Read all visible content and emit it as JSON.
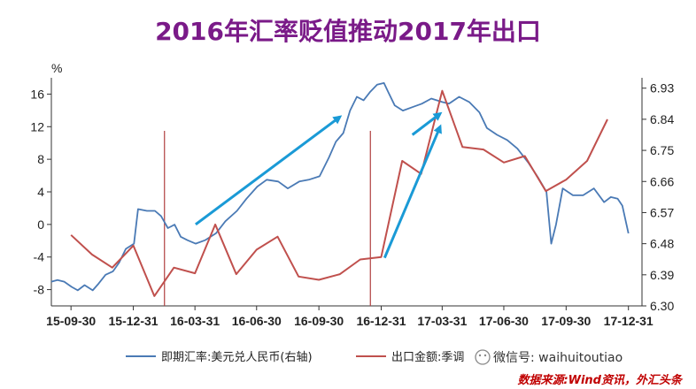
{
  "chart_data": {
    "type": "line",
    "title": "2016年汇率贬值推动2017年出口",
    "left_axis_unit": "%",
    "left_ylim": [
      -10,
      18
    ],
    "left_ticks": [
      "16",
      "12",
      "8",
      "4",
      "0",
      "-4",
      "-8"
    ],
    "left_tick_values": [
      16,
      12,
      8,
      4,
      0,
      -4,
      -8
    ],
    "right_ylim": [
      6.3,
      6.96
    ],
    "right_ticks": [
      "6.93",
      "6.84",
      "6.75",
      "6.66",
      "6.57",
      "6.48",
      "6.39",
      "6.30"
    ],
    "right_tick_values": [
      6.93,
      6.84,
      6.75,
      6.66,
      6.57,
      6.48,
      6.39,
      6.3
    ],
    "x_ticks": [
      "15-09-30",
      "15-12-31",
      "16-03-31",
      "16-06-30",
      "16-09-30",
      "16-12-31",
      "17-03-31",
      "17-06-30",
      "17-09-30",
      "17-12-31"
    ],
    "x_tick_values": [
      "2015-09-30",
      "2015-12-31",
      "2016-03-31",
      "2016-06-30",
      "2016-09-30",
      "2016-12-31",
      "2017-03-31",
      "2017-06-30",
      "2017-09-30",
      "2017-12-31"
    ],
    "x_range": [
      "2015-09-01",
      "2018-01-20"
    ],
    "grid": false,
    "legend_position": "bottom",
    "series": [
      {
        "name": "即期汇率:美元兑人民币(右轴)",
        "axis": "right",
        "color": "#4a7ab5",
        "points": [
          [
            "2015-09-01",
            6.37
          ],
          [
            "2015-09-10",
            6.375
          ],
          [
            "2015-09-20",
            6.37
          ],
          [
            "2015-10-01",
            6.355
          ],
          [
            "2015-10-10",
            6.345
          ],
          [
            "2015-10-20",
            6.36
          ],
          [
            "2015-11-01",
            6.345
          ],
          [
            "2015-11-10",
            6.365
          ],
          [
            "2015-11-20",
            6.39
          ],
          [
            "2015-12-01",
            6.4
          ],
          [
            "2015-12-10",
            6.425
          ],
          [
            "2015-12-20",
            6.465
          ],
          [
            "2016-01-01",
            6.48
          ],
          [
            "2016-01-07",
            6.58
          ],
          [
            "2016-01-20",
            6.575
          ],
          [
            "2016-02-01",
            6.575
          ],
          [
            "2016-02-10",
            6.56
          ],
          [
            "2016-02-20",
            6.525
          ],
          [
            "2016-03-01",
            6.535
          ],
          [
            "2016-03-10",
            6.5
          ],
          [
            "2016-03-20",
            6.49
          ],
          [
            "2016-04-01",
            6.48
          ],
          [
            "2016-04-15",
            6.49
          ],
          [
            "2016-05-01",
            6.51
          ],
          [
            "2016-05-15",
            6.545
          ],
          [
            "2016-06-01",
            6.575
          ],
          [
            "2016-06-15",
            6.61
          ],
          [
            "2016-07-01",
            6.645
          ],
          [
            "2016-07-15",
            6.665
          ],
          [
            "2016-08-01",
            6.66
          ],
          [
            "2016-08-15",
            6.64
          ],
          [
            "2016-09-01",
            6.66
          ],
          [
            "2016-09-15",
            6.665
          ],
          [
            "2016-10-01",
            6.675
          ],
          [
            "2016-10-15",
            6.73
          ],
          [
            "2016-10-25",
            6.775
          ],
          [
            "2016-11-05",
            6.8
          ],
          [
            "2016-11-15",
            6.865
          ],
          [
            "2016-11-25",
            6.905
          ],
          [
            "2016-12-05",
            6.895
          ],
          [
            "2016-12-15",
            6.92
          ],
          [
            "2016-12-25",
            6.94
          ],
          [
            "2017-01-04",
            6.945
          ],
          [
            "2017-01-10",
            6.92
          ],
          [
            "2017-01-20",
            6.88
          ],
          [
            "2017-02-01",
            6.865
          ],
          [
            "2017-02-15",
            6.875
          ],
          [
            "2017-03-01",
            6.885
          ],
          [
            "2017-03-15",
            6.9
          ],
          [
            "2017-03-31",
            6.89
          ],
          [
            "2017-04-10",
            6.885
          ],
          [
            "2017-04-25",
            6.905
          ],
          [
            "2017-05-10",
            6.89
          ],
          [
            "2017-05-25",
            6.86
          ],
          [
            "2017-06-05",
            6.815
          ],
          [
            "2017-06-20",
            6.795
          ],
          [
            "2017-07-05",
            6.78
          ],
          [
            "2017-07-20",
            6.755
          ],
          [
            "2017-08-05",
            6.715
          ],
          [
            "2017-08-20",
            6.67
          ],
          [
            "2017-09-01",
            6.63
          ],
          [
            "2017-09-08",
            6.48
          ],
          [
            "2017-09-15",
            6.535
          ],
          [
            "2017-09-25",
            6.64
          ],
          [
            "2017-10-10",
            6.62
          ],
          [
            "2017-10-25",
            6.62
          ],
          [
            "2017-11-10",
            6.64
          ],
          [
            "2017-11-25",
            6.6
          ],
          [
            "2017-12-05",
            6.615
          ],
          [
            "2017-12-15",
            6.61
          ],
          [
            "2017-12-22",
            6.59
          ],
          [
            "2017-12-31",
            6.51
          ]
        ]
      },
      {
        "name": "出口金额:季调",
        "axis": "left",
        "color": "#c0504d",
        "points": [
          [
            "2015-09-30",
            -1.3
          ],
          [
            "2015-10-31",
            -3.7
          ],
          [
            "2015-11-30",
            -5.3
          ],
          [
            "2015-12-31",
            -2.6
          ],
          [
            "2016-01-31",
            -8.8
          ],
          [
            "2016-02-29",
            -5.3
          ],
          [
            "2016-03-31",
            -6.0
          ],
          [
            "2016-04-30",
            0.0
          ],
          [
            "2016-05-31",
            -6.1
          ],
          [
            "2016-06-30",
            -3.1
          ],
          [
            "2016-07-31",
            -1.5
          ],
          [
            "2016-08-31",
            -6.4
          ],
          [
            "2016-09-30",
            -6.8
          ],
          [
            "2016-10-31",
            -6.1
          ],
          [
            "2016-11-30",
            -4.3
          ],
          [
            "2016-12-31",
            -4.0
          ],
          [
            "2017-01-31",
            7.8
          ],
          [
            "2017-02-28",
            6.2
          ],
          [
            "2017-03-31",
            16.4
          ],
          [
            "2017-04-30",
            9.5
          ],
          [
            "2017-05-31",
            9.2
          ],
          [
            "2017-06-30",
            7.6
          ],
          [
            "2017-07-31",
            8.4
          ],
          [
            "2017-08-31",
            4.1
          ],
          [
            "2017-09-30",
            5.5
          ],
          [
            "2017-10-31",
            7.8
          ],
          [
            "2017-11-30",
            12.9
          ]
        ]
      }
    ],
    "annotations": {
      "vertical_lines": [
        "2016-02-15",
        "2016-12-15"
      ],
      "arrows": [
        {
          "from": [
            "2016-04-01",
            0.0
          ],
          "to": [
            "2016-10-31",
            13.2
          ]
        },
        {
          "from": [
            "2017-01-05",
            -4.1
          ],
          "to": [
            "2017-03-28",
            12.0
          ]
        },
        {
          "from": [
            "2017-02-15",
            11.0
          ],
          "to": [
            "2017-03-28",
            13.6
          ]
        }
      ]
    },
    "legend": [
      "即期汇率:美元兑人民币(右轴)",
      "出口金额:季调"
    ]
  },
  "watermark": "微信号: waihuitoutiao",
  "source": "数据来源:Wind资讯，外汇头条",
  "colors": {
    "title": "#7a1a88",
    "source": "#c00000",
    "arrow": "#1a9ad6",
    "vline": "#b04040"
  }
}
